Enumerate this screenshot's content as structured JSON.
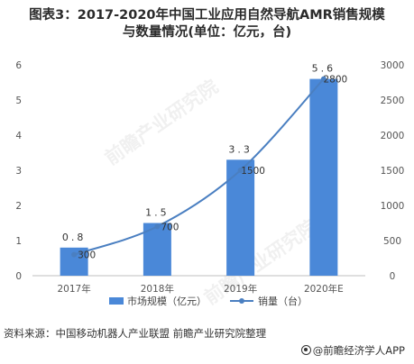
{
  "title_line1": "图表3：2017-2020年中国工业应用自然导航AMR销售规模",
  "title_line2": "与数量情况(单位：亿元，台)",
  "source": "资料来源：中国移动机器人产业联盟 前瞻产业研究院整理",
  "brand": "@前瞻经济学人APP",
  "watermarks": [
    "前瞻产业研究院",
    "前瞻产业研究院"
  ],
  "colors": {
    "bar": "#4a88d8",
    "line": "#4a7fc1"
  },
  "chart_data": {
    "type": "bar",
    "categories": [
      "2017年",
      "2018年",
      "2019年",
      "2020年E"
    ],
    "series": [
      {
        "name": "市场规模（亿元）",
        "type": "bar",
        "axis": "left",
        "values": [
          0.8,
          1.5,
          3.3,
          5.6
        ],
        "labels": [
          "0.8",
          "1.5",
          "3.3",
          "5.6"
        ]
      },
      {
        "name": "销量（台）",
        "type": "line",
        "axis": "right",
        "values": [
          300,
          700,
          1500,
          2800
        ],
        "labels": [
          "300",
          "700",
          "1500",
          "2800"
        ]
      }
    ],
    "y_left": {
      "ticks": [
        0,
        1,
        2,
        3,
        4,
        5,
        6
      ],
      "ylim": [
        0,
        6
      ]
    },
    "y_right": {
      "ticks": [
        0,
        500,
        1000,
        1500,
        2000,
        2500,
        3000
      ],
      "ylim": [
        0,
        3000
      ]
    },
    "legend_position": "bottom"
  }
}
